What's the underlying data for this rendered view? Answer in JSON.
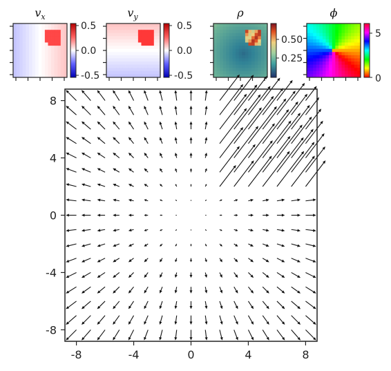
{
  "chart_data": [
    {
      "type": "heatmap",
      "title": "v_x",
      "title_base": "v",
      "title_sub": "x",
      "colormap": "bwr",
      "colorbar_ticks": [
        "0.5",
        "0.0",
        "-0.5"
      ],
      "colorbar_range": [
        -0.6,
        0.6
      ],
      "hotspot": "upper-right"
    },
    {
      "type": "heatmap",
      "title": "v_y",
      "title_base": "v",
      "title_sub": "y",
      "colormap": "bwr",
      "colorbar_ticks": [
        "0.5",
        "0.0",
        "-0.5"
      ],
      "colorbar_range": [
        -0.6,
        0.6
      ],
      "hotspot": "upper-right"
    },
    {
      "type": "heatmap",
      "title": "ρ",
      "colormap": "gist_earth-like",
      "colorbar_ticks": [
        "0.50",
        "0.25"
      ],
      "colorbar_range": [
        0.0,
        0.7
      ],
      "hotspot": "upper-right"
    },
    {
      "type": "heatmap",
      "title": "ϕ",
      "colormap": "hsv",
      "colorbar_ticks": [
        "5",
        "0"
      ],
      "colorbar_range": [
        0,
        6.28
      ]
    },
    {
      "type": "quiver",
      "x_ticks": [
        "-8",
        "-4",
        "0",
        "4",
        "8"
      ],
      "y_ticks": [
        "8",
        "4",
        "0",
        "-4",
        "-8"
      ],
      "xlim": [
        -8.8,
        8.8
      ],
      "ylim": [
        -8.8,
        8.8
      ],
      "grid": [
        -8,
        8,
        1
      ],
      "field": "outward radial flow from origin with a strong jet in the upper-right region (x 2..8, y 2..8)",
      "jet_region": {
        "x": [
          2,
          8
        ],
        "y": [
          2,
          8
        ]
      }
    }
  ]
}
